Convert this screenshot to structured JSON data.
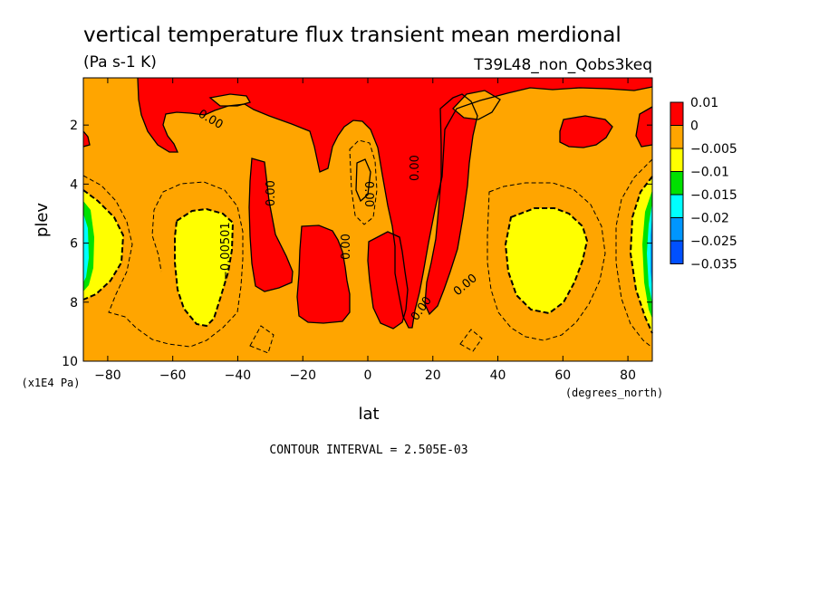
{
  "header": {
    "title": "vertical temperature flux transient mean merdional",
    "units": "(Pa s-1 K)",
    "run_id": "T39L48_non_Qobs3keq"
  },
  "footer": {
    "contour_interval": "CONTOUR INTERVAL = 2.505E-03"
  },
  "chart_data": {
    "type": "contour",
    "variable": "vertical temperature flux transient mean merdional",
    "units": "(Pa s-1 K)",
    "xlabel": "lat",
    "xunits": "(degrees_north)",
    "ylabel": "plev",
    "yunits": "(x1E4 Pa)",
    "xlim": [
      -87.5,
      87.5
    ],
    "ylim": [
      10,
      0.4
    ],
    "xticks": [
      -80,
      -60,
      -40,
      -20,
      0,
      20,
      40,
      60,
      80
    ],
    "xtick_labels": [
      "−80",
      "−60",
      "−40",
      "−20",
      "0",
      "20",
      "40",
      "60",
      "80"
    ],
    "yticks": [
      2,
      4,
      6,
      8,
      10
    ],
    "ytick_labels": [
      "2",
      "4",
      "6",
      "8",
      "10"
    ],
    "contour_interval": 0.002505,
    "contour_labels": [
      "0.00",
      "0.00",
      "0.00",
      "0.00",
      "0.00",
      "0.00",
      "0.00",
      "0.00",
      "−0.00501"
    ],
    "legend": {
      "levels": [
        "0.01",
        "0",
        "−0.005",
        "−0.01",
        "−0.015",
        "−0.02",
        "−0.025",
        "−0.035"
      ],
      "colors": [
        "#ff0000",
        "#ffa500",
        "#ffff00",
        "#00e100",
        "#00ffff",
        "#0096ff",
        "#0050ff"
      ]
    },
    "colors": {
      "positive": "#ff0000",
      "band_0_to_m0005": "#ffa500",
      "band_m0005_to_m001": "#ffff00",
      "band_m001_to_m0015": "#00e100",
      "band_m0015_to_m002": "#00ffff",
      "band_m002_to_m0025": "#0096ff",
      "band_m0025_to_m0035": "#0050ff"
    }
  }
}
